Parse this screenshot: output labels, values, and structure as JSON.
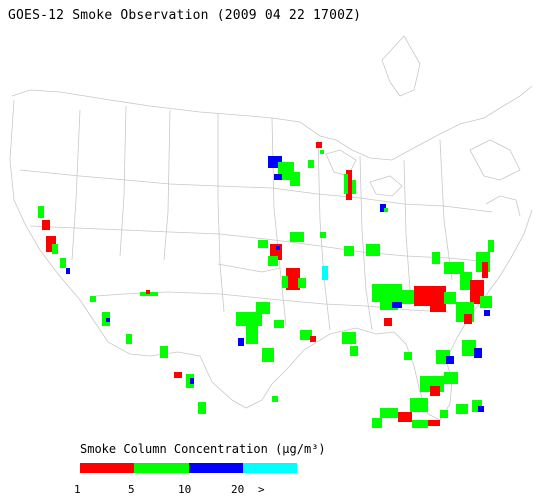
{
  "title": "GOES-12 Smoke Observation (2009 04 22  1700Z)",
  "legend": {
    "title": "Smoke Column Concentration (µg/m³)",
    "colors": [
      "#ff0000",
      "#00ff00",
      "#0000ff",
      "#00ffff"
    ],
    "ticks": [
      "1",
      "5",
      "10",
      "20",
      ">"
    ]
  }
}
